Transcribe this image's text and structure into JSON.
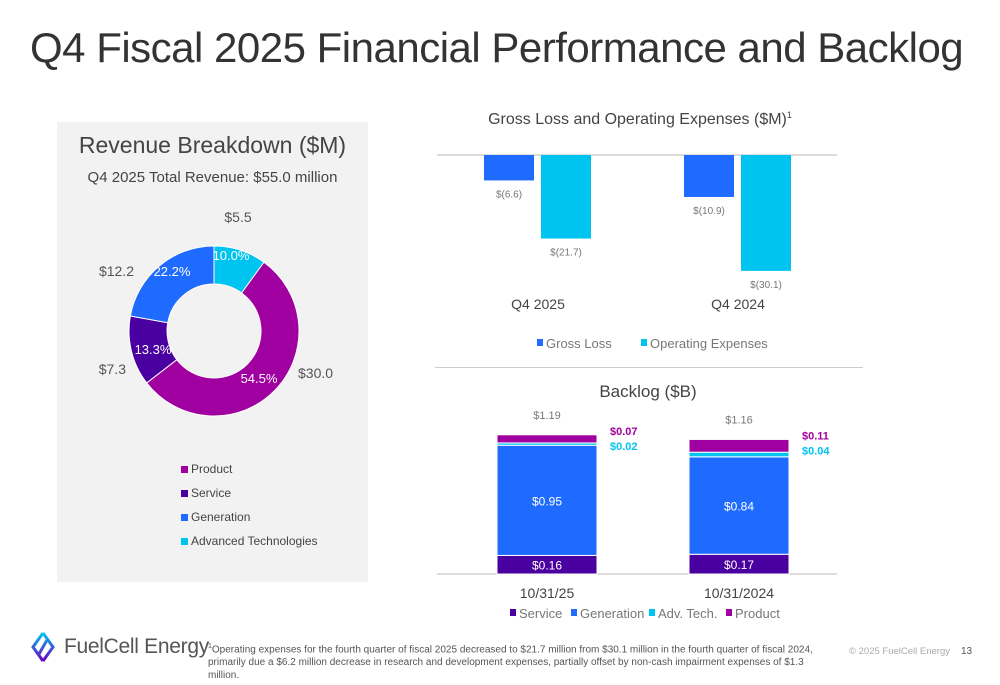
{
  "title": "Q4 Fiscal 2025 Financial Performance and Backlog",
  "colors": {
    "product": "#a0009f",
    "service": "#4a00a0",
    "generation": "#1f6bff",
    "adv_tech": "#00c4f0",
    "panel": "#f2f2f2"
  },
  "chart_data": [
    {
      "type": "pie",
      "title": "Revenue Breakdown ($M)",
      "subtitle": "Q4 2025 Total Revenue: $55.0 million",
      "donut": true,
      "slices": [
        {
          "name": "Advanced Technologies",
          "value": 5.5,
          "label": "$5.5",
          "percent": "10.0%",
          "color": "#00c4f0"
        },
        {
          "name": "Product",
          "value": 30.0,
          "label": "$30.0",
          "percent": "54.5%",
          "color": "#a0009f"
        },
        {
          "name": "Service",
          "value": 7.3,
          "label": "$7.3",
          "percent": "13.3%",
          "color": "#4a00a0"
        },
        {
          "name": "Generation",
          "value": 12.2,
          "label": "$12.2",
          "percent": "22.2%",
          "color": "#1f6bff"
        }
      ],
      "legend": [
        "Product",
        "Service",
        "Generation",
        "Advanced Technologies"
      ],
      "legend_placement": "bottom"
    },
    {
      "type": "bar",
      "title": "Gross Loss and Operating Expenses ($M)",
      "title_sup": "1",
      "categories": [
        "Q4 2025",
        "Q4 2024"
      ],
      "series": [
        {
          "name": "Gross Loss",
          "values": [
            -6.6,
            -10.9
          ],
          "labels": [
            "$(6.6)",
            "$(10.9)"
          ],
          "color": "#1f6bff"
        },
        {
          "name": "Operating Expenses",
          "values": [
            -21.7,
            -30.1
          ],
          "labels": [
            "$(21.7)",
            "$(30.1)"
          ],
          "color": "#00c4f0"
        }
      ],
      "legend_placement": "bottom"
    },
    {
      "type": "bar",
      "stacked": true,
      "title": "Backlog ($B)",
      "categories": [
        "10/31/25",
        "10/31/2024"
      ],
      "totals": [
        "$1.19",
        "$1.16"
      ],
      "series": [
        {
          "name": "Service",
          "values": [
            0.16,
            0.17
          ],
          "labels": [
            "$0.16",
            "$0.17"
          ],
          "color": "#4a00a0"
        },
        {
          "name": "Generation",
          "values": [
            0.95,
            0.84
          ],
          "labels": [
            "$0.95",
            "$0.84"
          ],
          "color": "#1f6bff"
        },
        {
          "name": "Adv. Tech.",
          "values": [
            0.02,
            0.04
          ],
          "labels": [
            "$0.02",
            "$0.04"
          ],
          "color": "#00c4f0"
        },
        {
          "name": "Product",
          "values": [
            0.07,
            0.11
          ],
          "labels": [
            "$0.07",
            "$0.11"
          ],
          "color": "#a0009f"
        }
      ],
      "legend_placement": "bottom"
    }
  ],
  "footer": {
    "logo_text": "FuelCell Energy",
    "footnote_sup": "1",
    "footnote": "Operating expenses for the fourth quarter of fiscal 2025 decreased to $21.7 million from $30.1 million in the fourth quarter of fiscal 2024, primarily due a $6.2 million decrease in research and development expenses, partially offset by non-cash impairment expenses of $1.3 million.",
    "copyright": "© 2025 FuelCell Energy",
    "page": "13"
  }
}
